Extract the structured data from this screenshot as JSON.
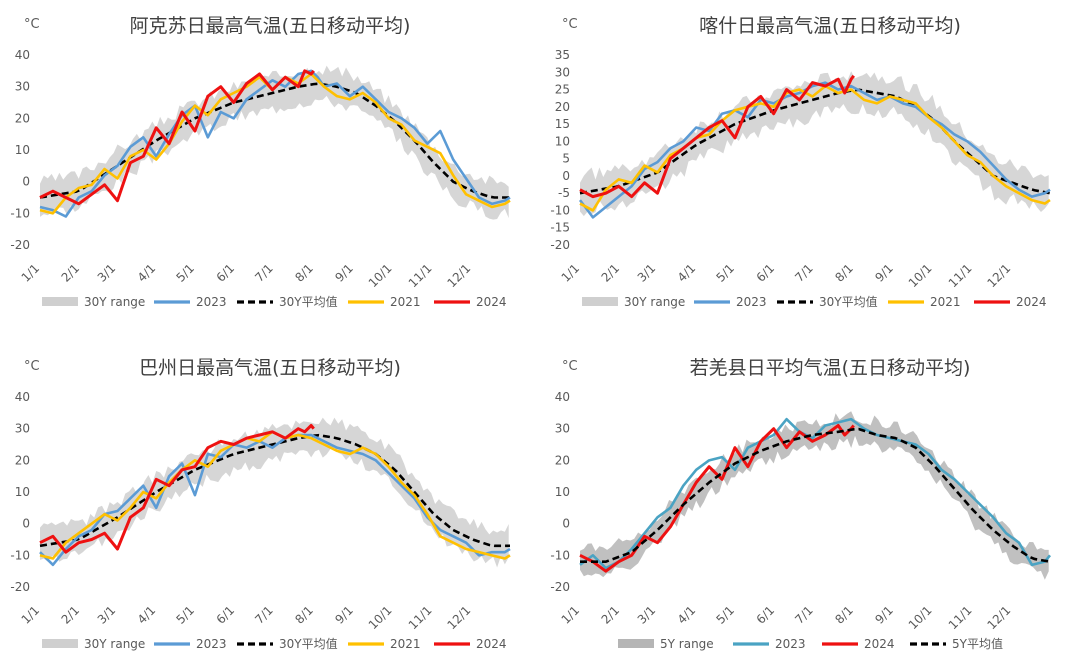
{
  "colors": {
    "range": "#cfcfcf",
    "range5y": "#b5b5b5",
    "y2023": "#5b9bd5",
    "y2023_teal": "#4aa3c3",
    "avg": "#000000",
    "y2021": "#ffc000",
    "y2024": "#ee1111",
    "text": "#595959",
    "title": "#404040"
  },
  "chart_data": [
    {
      "type": "line",
      "title": "阿克苏日最高气温(五日移动平均)",
      "unit": "°C",
      "ylim": [
        -20,
        40
      ],
      "yticks": [
        -20,
        -10,
        0,
        10,
        20,
        30,
        40
      ],
      "month_ticks": [
        "1/1",
        "2/1",
        "3/1",
        "4/1",
        "5/1",
        "6/1",
        "7/1",
        "8/1",
        "9/1",
        "10/1",
        "11/1",
        "12/1"
      ],
      "month_days": [
        0,
        31,
        59,
        90,
        120,
        151,
        181,
        212,
        243,
        273,
        304,
        334
      ],
      "days": 365,
      "legend": [
        "30Y range",
        "2023",
        "30Y平均值",
        "2021",
        "2024"
      ],
      "mean": {
        "x": [
          0,
          30,
          60,
          90,
          120,
          150,
          180,
          200,
          215,
          230,
          245,
          260,
          275,
          290,
          305,
          320,
          335,
          350,
          364
        ],
        "y": [
          -5,
          -3,
          5,
          13,
          20,
          25,
          28,
          30,
          31,
          30,
          28,
          24,
          19,
          13,
          6,
          0,
          -3,
          -5,
          -5
        ]
      },
      "range_half_width": 5,
      "series": [
        {
          "name": "2023",
          "color_key": "y2023",
          "x": [
            0,
            10,
            20,
            30,
            40,
            50,
            60,
            70,
            80,
            90,
            100,
            110,
            120,
            130,
            140,
            150,
            160,
            170,
            180,
            190,
            200,
            210,
            215,
            220,
            230,
            240,
            250,
            260,
            270,
            280,
            290,
            300,
            310,
            320,
            330,
            340,
            350,
            360,
            364
          ],
          "y": [
            -8,
            -9,
            -11,
            -5,
            -3,
            2,
            5,
            11,
            14,
            8,
            15,
            21,
            24,
            14,
            22,
            20,
            26,
            29,
            32,
            30,
            34,
            35,
            33,
            30,
            31,
            27,
            30,
            26,
            22,
            20,
            17,
            12,
            16,
            7,
            1,
            -5,
            -7,
            -6,
            -5
          ]
        },
        {
          "name": "2021",
          "color_key": "y2021",
          "x": [
            0,
            10,
            20,
            30,
            40,
            50,
            60,
            70,
            80,
            90,
            100,
            110,
            120,
            130,
            140,
            150,
            160,
            170,
            180,
            190,
            200,
            210,
            220,
            230,
            240,
            250,
            260,
            270,
            280,
            290,
            300,
            310,
            320,
            330,
            340,
            350,
            360,
            364
          ],
          "y": [
            -9,
            -10,
            -5,
            -2,
            -1,
            4,
            1,
            8,
            10,
            7,
            12,
            19,
            24,
            21,
            26,
            28,
            30,
            33,
            29,
            33,
            31,
            34,
            30,
            27,
            26,
            28,
            25,
            20,
            18,
            13,
            11,
            9,
            2,
            -4,
            -6,
            -8,
            -7,
            -6
          ]
        },
        {
          "name": "2024",
          "color_key": "y2024",
          "x": [
            0,
            10,
            20,
            30,
            40,
            50,
            60,
            70,
            80,
            90,
            100,
            110,
            120,
            130,
            140,
            150,
            160,
            170,
            180,
            190,
            200,
            205,
            210,
            212
          ],
          "y": [
            -5,
            -3,
            -5,
            -7,
            -4,
            -1,
            -6,
            6,
            8,
            17,
            12,
            22,
            16,
            27,
            30,
            25,
            31,
            34,
            29,
            33,
            30,
            35,
            34,
            35
          ]
        }
      ]
    },
    {
      "type": "line",
      "title": "喀什日最高气温(五日移动平均)",
      "unit": "°C",
      "ylim": [
        -20,
        35
      ],
      "yticks": [
        -20,
        -15,
        -10,
        -5,
        0,
        5,
        10,
        15,
        20,
        25,
        30,
        35
      ],
      "month_ticks": [
        "1/1",
        "2/1",
        "3/1",
        "4/1",
        "5/1",
        "6/1",
        "7/1",
        "8/1",
        "9/1",
        "10/1",
        "11/1",
        "12/1"
      ],
      "month_days": [
        0,
        31,
        59,
        90,
        120,
        151,
        181,
        212,
        243,
        273,
        304,
        334
      ],
      "days": 365,
      "legend": [
        "30Y range",
        "2023",
        "30Y平均值",
        "2021",
        "2024"
      ],
      "mean": {
        "x": [
          0,
          30,
          60,
          90,
          120,
          150,
          180,
          200,
          215,
          230,
          245,
          260,
          275,
          290,
          305,
          320,
          335,
          350,
          364
        ],
        "y": [
          -5,
          -3,
          1,
          9,
          15,
          19,
          22,
          24,
          25,
          24,
          23,
          20,
          16,
          10,
          5,
          0,
          -2,
          -4,
          -5
        ]
      },
      "range_half_width": 5,
      "series": [
        {
          "name": "2023",
          "color_key": "y2023",
          "x": [
            0,
            10,
            20,
            30,
            40,
            50,
            60,
            70,
            80,
            90,
            100,
            110,
            120,
            130,
            140,
            150,
            160,
            170,
            180,
            190,
            200,
            210,
            220,
            230,
            240,
            250,
            260,
            270,
            280,
            290,
            300,
            310,
            320,
            330,
            340,
            350,
            360,
            364
          ],
          "y": [
            -7,
            -12,
            -9,
            -6,
            -3,
            2,
            4,
            8,
            10,
            14,
            13,
            18,
            19,
            17,
            22,
            21,
            23,
            24,
            26,
            27,
            25,
            26,
            24,
            22,
            23,
            21,
            20,
            17,
            15,
            12,
            10,
            7,
            3,
            -1,
            -4,
            -6,
            -5,
            -4
          ]
        },
        {
          "name": "2021",
          "color_key": "y2021",
          "x": [
            0,
            10,
            20,
            30,
            40,
            50,
            60,
            70,
            80,
            90,
            100,
            110,
            120,
            130,
            140,
            150,
            160,
            170,
            180,
            190,
            200,
            210,
            220,
            230,
            240,
            250,
            260,
            270,
            280,
            290,
            300,
            310,
            320,
            330,
            340,
            350,
            360,
            364
          ],
          "y": [
            -8,
            -10,
            -4,
            -1,
            -2,
            3,
            1,
            6,
            8,
            11,
            12,
            16,
            19,
            20,
            21,
            20,
            24,
            25,
            23,
            26,
            24,
            25,
            22,
            21,
            23,
            22,
            21,
            17,
            14,
            10,
            6,
            4,
            0,
            -3,
            -5,
            -7,
            -8,
            -7
          ]
        },
        {
          "name": "2024",
          "color_key": "y2024",
          "x": [
            0,
            10,
            20,
            30,
            40,
            50,
            60,
            70,
            80,
            90,
            100,
            110,
            120,
            130,
            140,
            150,
            160,
            170,
            180,
            190,
            200,
            205,
            210,
            212
          ],
          "y": [
            -4,
            -6,
            -5,
            -3,
            -6,
            -2,
            -5,
            5,
            8,
            11,
            14,
            16,
            11,
            20,
            23,
            18,
            25,
            22,
            27,
            26,
            28,
            24,
            28,
            29
          ]
        }
      ]
    },
    {
      "type": "line",
      "title": "巴州日最高气温(五日移动平均)",
      "unit": "°C",
      "ylim": [
        -20,
        40
      ],
      "yticks": [
        -20,
        -10,
        0,
        10,
        20,
        30,
        40
      ],
      "month_ticks": [
        "1/1",
        "2/1",
        "3/1",
        "4/1",
        "5/1",
        "6/1",
        "7/1",
        "8/1",
        "9/1",
        "10/1",
        "11/1",
        "12/1"
      ],
      "month_days": [
        0,
        31,
        59,
        90,
        120,
        151,
        181,
        212,
        243,
        273,
        304,
        334
      ],
      "days": 365,
      "legend": [
        "30Y range",
        "2023",
        "30Y平均值",
        "2021",
        "2024"
      ],
      "mean": {
        "x": [
          0,
          30,
          60,
          90,
          120,
          150,
          180,
          200,
          215,
          230,
          245,
          260,
          275,
          290,
          305,
          320,
          335,
          350,
          364
        ],
        "y": [
          -7,
          -5,
          2,
          10,
          17,
          22,
          25,
          27,
          28,
          27,
          25,
          22,
          17,
          10,
          3,
          -2,
          -5,
          -7,
          -7
        ]
      },
      "range_half_width": 5,
      "series": [
        {
          "name": "2023",
          "color_key": "y2023",
          "x": [
            0,
            10,
            20,
            30,
            40,
            50,
            60,
            70,
            80,
            90,
            100,
            110,
            120,
            130,
            140,
            150,
            160,
            170,
            180,
            190,
            200,
            210,
            220,
            230,
            240,
            250,
            260,
            270,
            280,
            290,
            300,
            310,
            320,
            330,
            340,
            350,
            360,
            364
          ],
          "y": [
            -9,
            -13,
            -8,
            -4,
            -2,
            3,
            4,
            8,
            12,
            5,
            15,
            19,
            9,
            22,
            21,
            25,
            24,
            26,
            24,
            27,
            28,
            28,
            26,
            24,
            23,
            22,
            20,
            16,
            12,
            8,
            2,
            -2,
            -4,
            -6,
            -10,
            -9,
            -9,
            -8
          ]
        },
        {
          "name": "2021",
          "color_key": "y2021",
          "x": [
            0,
            10,
            20,
            30,
            40,
            50,
            60,
            70,
            80,
            90,
            100,
            110,
            120,
            130,
            140,
            150,
            160,
            170,
            180,
            190,
            200,
            210,
            220,
            230,
            240,
            250,
            260,
            270,
            280,
            290,
            300,
            310,
            320,
            330,
            340,
            350,
            360,
            364
          ],
          "y": [
            -10,
            -11,
            -6,
            -3,
            0,
            3,
            1,
            5,
            10,
            8,
            13,
            17,
            20,
            18,
            23,
            25,
            27,
            26,
            29,
            27,
            28,
            27,
            25,
            23,
            22,
            24,
            22,
            18,
            13,
            9,
            3,
            -4,
            -6,
            -8,
            -9,
            -10,
            -11,
            -10
          ]
        },
        {
          "name": "2024",
          "color_key": "y2024",
          "x": [
            0,
            10,
            20,
            30,
            40,
            50,
            60,
            70,
            80,
            90,
            100,
            110,
            120,
            130,
            140,
            150,
            160,
            170,
            180,
            190,
            200,
            205,
            210,
            212
          ],
          "y": [
            -6,
            -4,
            -9,
            -6,
            -5,
            -3,
            -8,
            2,
            5,
            14,
            12,
            17,
            18,
            24,
            26,
            25,
            27,
            28,
            29,
            27,
            30,
            29,
            31,
            30
          ]
        }
      ]
    },
    {
      "type": "line",
      "title": "若羌县日平均气温(五日移动平均)",
      "unit": "°C",
      "ylim": [
        -20,
        40
      ],
      "yticks": [
        -20,
        -10,
        0,
        10,
        20,
        30,
        40
      ],
      "month_ticks": [
        "1/1",
        "2/1",
        "3/1",
        "4/1",
        "5/1",
        "6/1",
        "7/1",
        "8/1",
        "9/1",
        "10/1",
        "11/1",
        "12/1"
      ],
      "month_days": [
        0,
        31,
        59,
        90,
        120,
        151,
        181,
        212,
        243,
        273,
        304,
        334
      ],
      "days": 365,
      "legend": [
        "5Y range",
        "2023",
        "2024",
        "5Y平均值"
      ],
      "mean": {
        "x": [
          0,
          20,
          40,
          60,
          80,
          100,
          120,
          140,
          160,
          180,
          200,
          215,
          230,
          245,
          260,
          275,
          290,
          305,
          320,
          335,
          350,
          364
        ],
        "y": [
          -12,
          -12,
          -9,
          -2,
          6,
          13,
          19,
          23,
          26,
          28,
          29,
          30,
          28,
          27,
          24,
          18,
          11,
          4,
          -2,
          -7,
          -11,
          -12
        ]
      },
      "range_half_width": 4,
      "series": [
        {
          "name": "2023",
          "color_key": "y2023_teal",
          "x": [
            0,
            10,
            20,
            30,
            40,
            50,
            60,
            70,
            80,
            90,
            100,
            110,
            120,
            130,
            140,
            150,
            160,
            170,
            180,
            190,
            200,
            210,
            220,
            230,
            240,
            250,
            260,
            270,
            280,
            290,
            300,
            310,
            320,
            330,
            340,
            350,
            360,
            364
          ],
          "y": [
            -13,
            -10,
            -14,
            -12,
            -8,
            -3,
            2,
            5,
            12,
            17,
            20,
            21,
            17,
            24,
            26,
            28,
            33,
            29,
            27,
            31,
            32,
            33,
            30,
            28,
            27,
            26,
            25,
            22,
            17,
            14,
            10,
            6,
            2,
            -3,
            -6,
            -13,
            -12,
            -10
          ]
        },
        {
          "name": "2024",
          "color_key": "y2024",
          "x": [
            0,
            10,
            20,
            30,
            40,
            50,
            60,
            70,
            80,
            90,
            100,
            110,
            120,
            130,
            140,
            150,
            160,
            170,
            180,
            190,
            200,
            205,
            210,
            212
          ],
          "y": [
            -10,
            -12,
            -15,
            -12,
            -10,
            -4,
            -6,
            -1,
            6,
            13,
            18,
            14,
            24,
            18,
            26,
            30,
            24,
            29,
            26,
            28,
            31,
            28,
            30,
            31
          ]
        }
      ]
    }
  ]
}
